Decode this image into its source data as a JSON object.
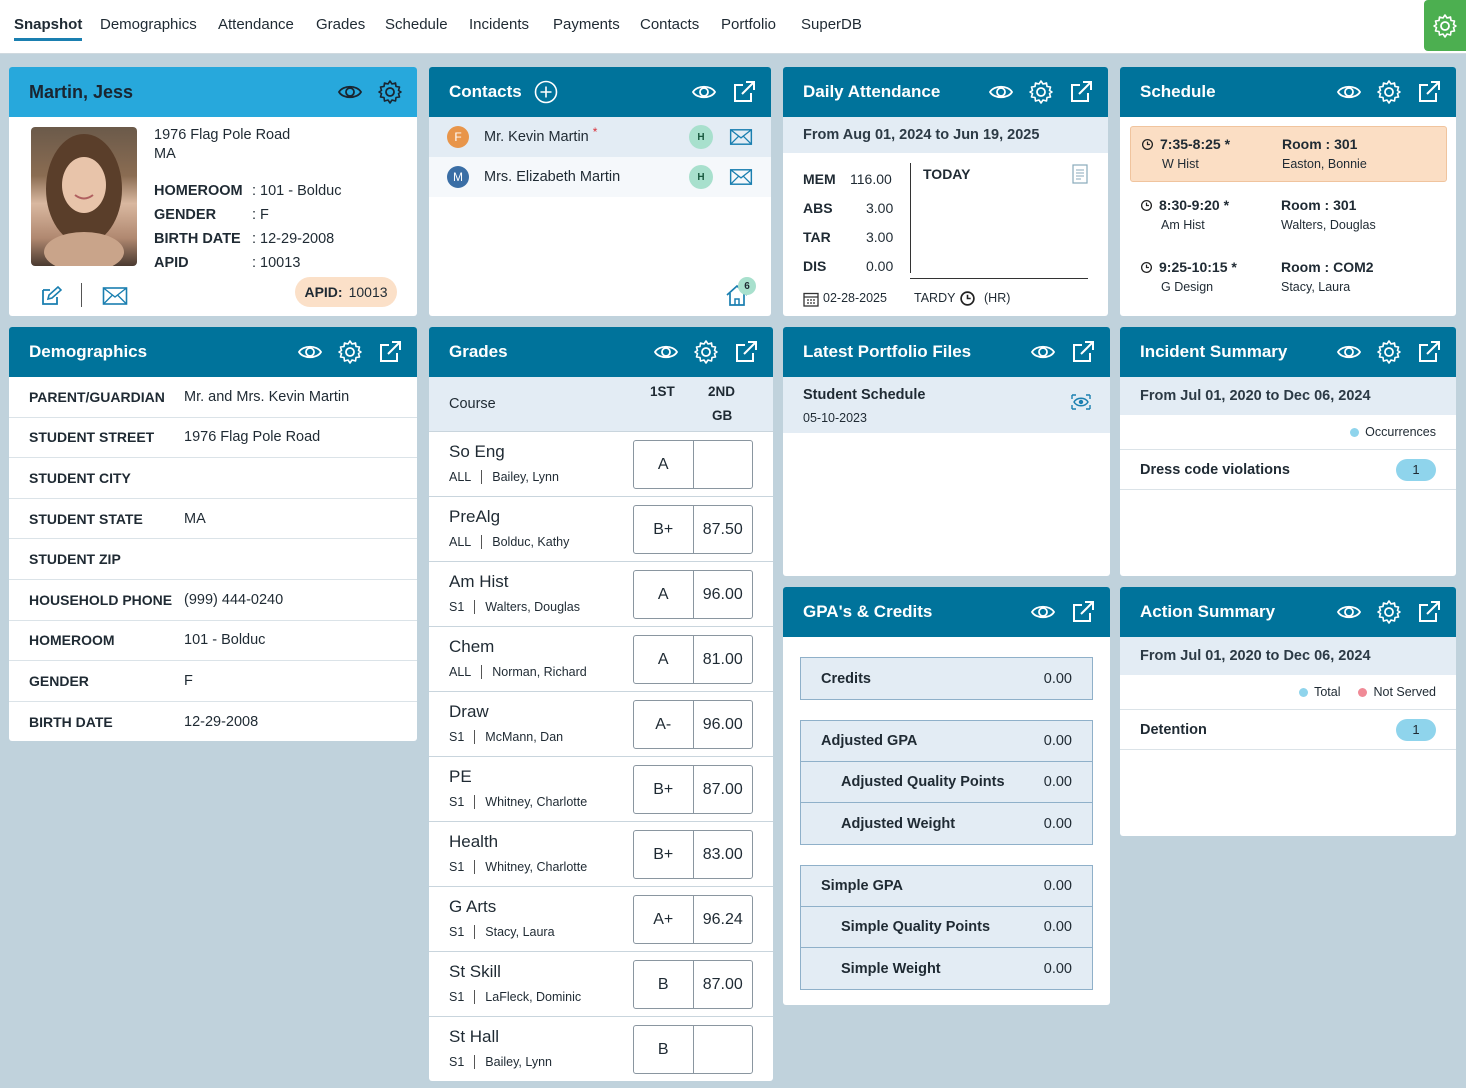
{
  "nav": {
    "tabs": [
      "Snapshot",
      "Demographics",
      "Attendance",
      "Grades",
      "Schedule",
      "Incidents",
      "Payments",
      "Contacts",
      "Portfolio",
      "SuperDB"
    ],
    "active": "Snapshot"
  },
  "student": {
    "name": "Martin, Jess",
    "address1": "1976 Flag Pole Road",
    "address2": "MA",
    "fields": [
      {
        "label": "HOMEROOM",
        "value": ": 101 - Bolduc"
      },
      {
        "label": "GENDER",
        "value": ": F"
      },
      {
        "label": "BIRTH DATE",
        "value": ": 12-29-2008"
      },
      {
        "label": "APID",
        "value": ": 10013"
      }
    ],
    "apid_badge_label": "APID:",
    "apid_badge_value": "10013"
  },
  "contacts": {
    "title": "Contacts",
    "items": [
      {
        "initial": "F",
        "name": "Mr. Kevin Martin",
        "required_mark": "*",
        "badge": "H",
        "color": "#e8954a"
      },
      {
        "initial": "M",
        "name": "Mrs. Elizabeth Martin",
        "required_mark": "",
        "badge": "H",
        "color": "#3a6ea5"
      }
    ],
    "household_count": "6"
  },
  "attendance": {
    "title": "Daily Attendance",
    "range": "From Aug 01, 2024 to Jun 19, 2025",
    "stats": [
      {
        "label": "MEM",
        "value": "116.00"
      },
      {
        "label": "ABS",
        "value": "3.00"
      },
      {
        "label": "TAR",
        "value": "3.00"
      },
      {
        "label": "DIS",
        "value": "0.00"
      }
    ],
    "today_label": "TODAY",
    "last_date": "02-28-2025",
    "last_type": "TARDY",
    "last_code": "(HR)"
  },
  "schedule": {
    "title": "Schedule",
    "items": [
      {
        "time": "7:35-8:25 *",
        "course": "W Hist",
        "room": "Room : 301",
        "teacher": "Easton, Bonnie",
        "current": true
      },
      {
        "time": "8:30-9:20 *",
        "course": "Am Hist",
        "room": "Room : 301",
        "teacher": "Walters, Douglas",
        "current": false
      },
      {
        "time": "9:25-10:15 *",
        "course": "G Design",
        "room": "Room : COM2",
        "teacher": "Stacy, Laura",
        "current": false
      }
    ]
  },
  "demographics": {
    "title": "Demographics",
    "rows": [
      {
        "label": "PARENT/GUARDIAN",
        "value": "Mr. and Mrs. Kevin Martin"
      },
      {
        "label": "STUDENT STREET",
        "value": "1976 Flag Pole Road"
      },
      {
        "label": "STUDENT CITY",
        "value": ""
      },
      {
        "label": "STUDENT STATE",
        "value": "MA"
      },
      {
        "label": "STUDENT ZIP",
        "value": ""
      },
      {
        "label": "HOUSEHOLD PHONE",
        "value": "(999) 444-0240"
      },
      {
        "label": "HOMEROOM",
        "value": "101 - Bolduc"
      },
      {
        "label": "GENDER",
        "value": "F"
      },
      {
        "label": "BIRTH DATE",
        "value": "12-29-2008"
      }
    ]
  },
  "grades": {
    "title": "Grades",
    "col_course": "Course",
    "col_1": "1ST",
    "col_2a": "2ND",
    "col_2b": "GB",
    "rows": [
      {
        "course": "So Eng",
        "term": "ALL",
        "teacher": "Bailey, Lynn",
        "g1": "A",
        "g2": ""
      },
      {
        "course": "PreAlg",
        "term": "ALL",
        "teacher": "Bolduc, Kathy",
        "g1": "B+",
        "g2": "87.50"
      },
      {
        "course": "Am Hist",
        "term": "S1",
        "teacher": "Walters, Douglas",
        "g1": "A",
        "g2": "96.00"
      },
      {
        "course": "Chem",
        "term": "ALL",
        "teacher": "Norman, Richard",
        "g1": "A",
        "g2": "81.00"
      },
      {
        "course": "Draw",
        "term": "S1",
        "teacher": "McMann, Dan",
        "g1": "A-",
        "g2": "96.00"
      },
      {
        "course": "PE",
        "term": "S1",
        "teacher": "Whitney, Charlotte",
        "g1": "B+",
        "g2": "87.00"
      },
      {
        "course": "Health",
        "term": "S1",
        "teacher": "Whitney, Charlotte",
        "g1": "B+",
        "g2": "83.00"
      },
      {
        "course": "G Arts",
        "term": "S1",
        "teacher": "Stacy, Laura",
        "g1": "A+",
        "g2": "96.24"
      },
      {
        "course": "St Skill",
        "term": "S1",
        "teacher": "LaFleck, Dominic",
        "g1": "B",
        "g2": "87.00"
      },
      {
        "course": "St Hall",
        "term": "S1",
        "teacher": "Bailey, Lynn",
        "g1": "B",
        "g2": ""
      }
    ]
  },
  "portfolio": {
    "title": "Latest Portfolio Files",
    "file_name": "Student Schedule",
    "file_date": "05-10-2023"
  },
  "gpa": {
    "title": "GPA's & Credits",
    "credits": {
      "label": "Credits",
      "value": "0.00"
    },
    "adjusted": [
      {
        "label": "Adjusted GPA",
        "value": "0.00"
      },
      {
        "label": "Adjusted Quality Points",
        "value": "0.00"
      },
      {
        "label": "Adjusted Weight",
        "value": "0.00"
      }
    ],
    "simple": [
      {
        "label": "Simple GPA",
        "value": "0.00"
      },
      {
        "label": "Simple Quality Points",
        "value": "0.00"
      },
      {
        "label": "Simple Weight",
        "value": "0.00"
      }
    ]
  },
  "incidents": {
    "title": "Incident Summary",
    "range": "From Jul 01, 2020 to Dec 06, 2024",
    "legend": "Occurrences",
    "legend_color": "#8fd4ec",
    "rows": [
      {
        "label": "Dress code violations",
        "count": "1"
      }
    ]
  },
  "actions": {
    "title": "Action Summary",
    "range": "From Jul 01, 2020 to Dec 06, 2024",
    "legend_total": "Total",
    "legend_not_served": "Not Served",
    "total_color": "#8fd4ec",
    "not_served_color": "#f08a96",
    "rows": [
      {
        "label": "Detention",
        "count": "1"
      }
    ]
  },
  "colors": {
    "header": "#00739b",
    "header_light": "#27a8dc",
    "background": "#c0d2dc",
    "accent_green": "#4caf50"
  }
}
